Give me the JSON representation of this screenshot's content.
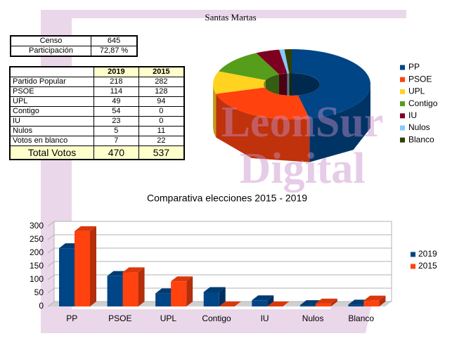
{
  "title": "Santas Martas",
  "summary_table": {
    "rows": [
      [
        "Censo",
        645
      ],
      [
        "Participación",
        "72,87 %"
      ]
    ]
  },
  "results_table": {
    "header": [
      "2019",
      "2015"
    ],
    "rows": [
      [
        "Partido Popular",
        218,
        282
      ],
      [
        "PSOE",
        114,
        128
      ],
      [
        "UPL",
        49,
        94
      ],
      [
        "Contigo",
        54,
        0
      ],
      [
        "IU",
        23,
        0
      ],
      [
        "Nulos",
        5,
        11
      ],
      [
        "Votos en blanco",
        7,
        22
      ]
    ],
    "total": [
      "Total Votos",
      470,
      537
    ]
  },
  "watermark": [
    "LeonSur",
    "Digital"
  ],
  "chart_data": [
    {
      "type": "pie",
      "categories": [
        "PP",
        "PSOE",
        "UPL",
        "Contigo",
        "IU",
        "Nulos",
        "Blanco"
      ],
      "values": [
        218,
        114,
        49,
        54,
        23,
        5,
        7
      ],
      "colors": [
        "#004586",
        "#ff420e",
        "#ffd320",
        "#579d1c",
        "#7e0021",
        "#83caff",
        "#314004"
      ],
      "legend": "right"
    },
    {
      "type": "bar",
      "title": "Comparativa elecciones 2015 - 2019",
      "categories": [
        "PP",
        "PSOE",
        "UPL",
        "Contigo",
        "IU",
        "Nulos",
        "Blanco"
      ],
      "series": [
        {
          "name": "2019",
          "color": "#004586",
          "values": [
            218,
            114,
            49,
            54,
            23,
            5,
            7
          ]
        },
        {
          "name": "2015",
          "color": "#ff420e",
          "values": [
            282,
            128,
            94,
            0,
            0,
            11,
            22
          ]
        }
      ],
      "ylim": [
        0,
        300
      ],
      "yticks": [
        0,
        50,
        100,
        150,
        200,
        250,
        300
      ],
      "grid": true,
      "legend": "right"
    }
  ]
}
